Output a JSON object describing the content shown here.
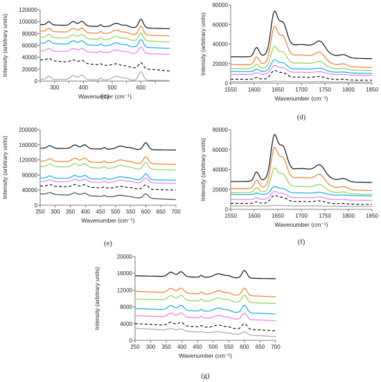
{
  "colors": {
    "black": "#111111",
    "orange": "#ed7d31",
    "green": "#92d050",
    "blue": "#00b0f0",
    "magenta": "#e67ee6",
    "dashed": "#111111",
    "gray": "#a6a6a6",
    "darkslate": "#2f4f5f"
  },
  "chart_data": [
    {
      "id": "c",
      "type": "line",
      "panel_label": "(c)",
      "xlabel": "Wavenumber (cm⁻¹)",
      "ylabel": "Intensity (arbitrary units)",
      "xlim": [
        250,
        700
      ],
      "ylim": [
        0,
        120000
      ],
      "xticks": [
        250,
        300,
        350,
        400,
        450,
        500,
        550,
        600,
        650
      ],
      "xtick_labels": [
        "",
        "300",
        "",
        "400",
        "",
        "500",
        "",
        "600",
        ""
      ],
      "yticks": [
        0,
        20000,
        40000,
        60000,
        80000,
        100000,
        120000
      ],
      "ytick_labels": [
        "0",
        "20000",
        "40000",
        "60000",
        "80000",
        "100000",
        "120000"
      ],
      "peaks": [
        {
          "x": 280,
          "w": 7,
          "h": 0.6
        },
        {
          "x": 365,
          "w": 10,
          "h": 0.75
        },
        {
          "x": 395,
          "w": 9,
          "h": 0.85
        },
        {
          "x": 460,
          "w": 4,
          "h": 0.35
        },
        {
          "x": 515,
          "w": 14,
          "h": 0.7
        },
        {
          "x": 548,
          "w": 10,
          "h": 0.35
        },
        {
          "x": 600,
          "w": 8,
          "h": 1.6
        }
      ],
      "series": [
        {
          "color": "black",
          "style": "solid",
          "base_start": 95000,
          "base_end": 88000,
          "scale": 9000
        },
        {
          "color": "orange",
          "style": "solid",
          "base_start": 84000,
          "base_end": 76000,
          "scale": 9000
        },
        {
          "color": "green",
          "style": "solid",
          "base_start": 74000,
          "base_end": 66000,
          "scale": 8000
        },
        {
          "color": "blue",
          "style": "solid",
          "base_start": 64000,
          "base_end": 55000,
          "scale": 8000
        },
        {
          "color": "magenta",
          "style": "solid",
          "base_start": 51000,
          "base_end": 45000,
          "scale": 7000
        },
        {
          "color": "dashed",
          "style": "dashed",
          "base_start": 36000,
          "base_end": 17000,
          "scale": 6000
        },
        {
          "color": "gray",
          "style": "solid",
          "base_start": 3000,
          "base_end": 1000,
          "scale": 9000
        }
      ]
    },
    {
      "id": "d",
      "type": "line",
      "panel_label": "(d)",
      "xlabel": "Wavenumber (cm⁻¹)",
      "ylabel": "Intensity (arbitrary units)",
      "xlim": [
        1550,
        1850
      ],
      "ylim": [
        0,
        80000
      ],
      "xticks": [
        1550,
        1600,
        1650,
        1700,
        1750,
        1800,
        1850
      ],
      "xtick_labels": [
        "1550",
        "1600",
        "1650",
        "1700",
        "1750",
        "1800",
        "1850"
      ],
      "yticks": [
        0,
        20000,
        40000,
        60000,
        80000
      ],
      "ytick_labels": [
        "0",
        "20000",
        "40000",
        "60000",
        "80000"
      ],
      "peaks": [
        {
          "x": 1605,
          "w": 5,
          "h": 0.2
        },
        {
          "x": 1642,
          "w": 7,
          "h": 0.85
        },
        {
          "x": 1660,
          "w": 9,
          "h": 0.6
        },
        {
          "x": 1700,
          "w": 40,
          "h": 0.3
        },
        {
          "x": 1740,
          "w": 10,
          "h": 0.2
        },
        {
          "x": 1790,
          "w": 8,
          "h": 0.06
        }
      ],
      "series": [
        {
          "color": "black",
          "style": "solid",
          "base_start": 27000,
          "base_end": 25000,
          "scale": 45000
        },
        {
          "color": "orange",
          "style": "solid",
          "base_start": 19000,
          "base_end": 16000,
          "scale": 38000
        },
        {
          "color": "green",
          "style": "solid",
          "base_start": 15000,
          "base_end": 13000,
          "scale": 22000
        },
        {
          "color": "blue",
          "style": "solid",
          "base_start": 12000,
          "base_end": 10000,
          "scale": 12000
        },
        {
          "color": "magenta",
          "style": "solid",
          "base_start": 9000,
          "base_end": 8000,
          "scale": 9000
        },
        {
          "color": "dashed",
          "style": "dashed",
          "base_start": 4000,
          "base_end": 3000,
          "scale": 9000
        },
        {
          "color": "gray",
          "style": "solid",
          "base_start": 1500,
          "base_end": 1200,
          "scale": 600
        }
      ]
    },
    {
      "id": "e",
      "type": "line",
      "panel_label": "(e)",
      "xlabel": "Wavenumber (cm⁻¹)",
      "ylabel": "Intensity (arbitrary units)",
      "xlim": [
        250,
        700
      ],
      "ylim": [
        0,
        200000
      ],
      "xticks": [
        250,
        300,
        350,
        400,
        450,
        500,
        550,
        600,
        650,
        700
      ],
      "xtick_labels": [
        "250",
        "300",
        "350",
        "400",
        "450",
        "500",
        "550",
        "600",
        "650",
        "700"
      ],
      "yticks": [
        0,
        40000,
        80000,
        120000,
        160000,
        200000
      ],
      "ytick_labels": [
        "0",
        "40000",
        "80000",
        "120000",
        "160000",
        "200000"
      ],
      "peaks": [
        {
          "x": 282,
          "w": 8,
          "h": 0.5
        },
        {
          "x": 365,
          "w": 10,
          "h": 0.7
        },
        {
          "x": 397,
          "w": 9,
          "h": 0.75
        },
        {
          "x": 462,
          "w": 4,
          "h": 0.3
        },
        {
          "x": 517,
          "w": 14,
          "h": 0.6
        },
        {
          "x": 548,
          "w": 10,
          "h": 0.3
        },
        {
          "x": 600,
          "w": 8,
          "h": 1.3
        }
      ],
      "series": [
        {
          "color": "black",
          "style": "solid",
          "base_start": 151000,
          "base_end": 146000,
          "scale": 14000
        },
        {
          "color": "orange",
          "style": "solid",
          "base_start": 117000,
          "base_end": 108000,
          "scale": 14000
        },
        {
          "color": "green",
          "style": "solid",
          "base_start": 103000,
          "base_end": 93000,
          "scale": 14000
        },
        {
          "color": "blue",
          "style": "solid",
          "base_start": 72000,
          "base_end": 66000,
          "scale": 12000
        },
        {
          "color": "magenta",
          "style": "solid",
          "base_start": 63000,
          "base_end": 58000,
          "scale": 10000
        },
        {
          "color": "dashed",
          "style": "dashed",
          "base_start": 51000,
          "base_end": 40000,
          "scale": 9000
        },
        {
          "color": "darkslate",
          "style": "solid",
          "base_start": 30000,
          "base_end": 15000,
          "scale": 9000
        }
      ]
    },
    {
      "id": "f",
      "type": "line",
      "panel_label": "(f)",
      "xlabel": "Wavenumber (cm⁻¹)",
      "ylabel": "Intensity (arbitrary units)",
      "xlim": [
        1550,
        1850
      ],
      "ylim": [
        0,
        80000
      ],
      "xticks": [
        1550,
        1600,
        1650,
        1700,
        1750,
        1800,
        1850
      ],
      "xtick_labels": [
        "1550",
        "1600",
        "1650",
        "1700",
        "1750",
        "1800",
        "1850"
      ],
      "yticks": [
        0,
        20000,
        40000,
        60000,
        80000
      ],
      "ytick_labels": [
        "0",
        "20000",
        "40000",
        "60000",
        "80000"
      ],
      "peaks": [
        {
          "x": 1605,
          "w": 5,
          "h": 0.2
        },
        {
          "x": 1642,
          "w": 7,
          "h": 0.85
        },
        {
          "x": 1660,
          "w": 9,
          "h": 0.6
        },
        {
          "x": 1700,
          "w": 40,
          "h": 0.3
        },
        {
          "x": 1740,
          "w": 10,
          "h": 0.2
        },
        {
          "x": 1790,
          "w": 8,
          "h": 0.06
        }
      ],
      "series": [
        {
          "color": "black",
          "style": "solid",
          "base_start": 28000,
          "base_end": 27000,
          "scale": 45000
        },
        {
          "color": "orange",
          "style": "solid",
          "base_start": 21000,
          "base_end": 19000,
          "scale": 40000
        },
        {
          "color": "green",
          "style": "solid",
          "base_start": 17000,
          "base_end": 15000,
          "scale": 24000
        },
        {
          "color": "blue",
          "style": "solid",
          "base_start": 15000,
          "base_end": 13500,
          "scale": 8000
        },
        {
          "color": "magenta",
          "style": "solid",
          "base_start": 10000,
          "base_end": 9000,
          "scale": 8000
        },
        {
          "color": "dashed",
          "style": "dashed",
          "base_start": 6000,
          "base_end": 5000,
          "scale": 8000
        },
        {
          "color": "gray",
          "style": "solid",
          "base_start": 3500,
          "base_end": 3000,
          "scale": 600
        }
      ]
    },
    {
      "id": "g",
      "type": "line",
      "panel_label": "(g)",
      "xlabel": "Wavenumber (cm⁻¹)",
      "ylabel": "Intensity (arbitrary units)",
      "xlim": [
        250,
        700
      ],
      "ylim": [
        0,
        20000
      ],
      "xticks": [
        250,
        300,
        350,
        400,
        450,
        500,
        550,
        600,
        650,
        700
      ],
      "xtick_labels": [
        "250",
        "300",
        "350",
        "400",
        "450",
        "500",
        "550",
        "600",
        "650",
        "700"
      ],
      "yticks": [
        0,
        4000,
        8000,
        12000,
        16000,
        20000
      ],
      "ytick_labels": [
        "0",
        "4000",
        "8000",
        "12000",
        "16000",
        "20000"
      ],
      "peaks": [
        {
          "x": 365,
          "w": 10,
          "h": 0.7
        },
        {
          "x": 397,
          "w": 9,
          "h": 0.8
        },
        {
          "x": 462,
          "w": 4,
          "h": 0.3
        },
        {
          "x": 517,
          "w": 14,
          "h": 0.6
        },
        {
          "x": 548,
          "w": 10,
          "h": 0.3
        },
        {
          "x": 600,
          "w": 8,
          "h": 1.2
        }
      ],
      "series": [
        {
          "color": "black",
          "style": "solid",
          "base_start": 15400,
          "base_end": 14700,
          "scale": 1500
        },
        {
          "color": "orange",
          "style": "solid",
          "base_start": 11700,
          "base_end": 10400,
          "scale": 1500
        },
        {
          "color": "green",
          "style": "solid",
          "base_start": 9900,
          "base_end": 8800,
          "scale": 1500
        },
        {
          "color": "blue",
          "style": "solid",
          "base_start": 7600,
          "base_end": 6300,
          "scale": 1500
        },
        {
          "color": "magenta",
          "style": "solid",
          "base_start": 5900,
          "base_end": 4700,
          "scale": 1300
        },
        {
          "color": "dashed",
          "style": "dashed",
          "base_start": 4000,
          "base_end": 2300,
          "scale": 1100
        },
        {
          "color": "gray",
          "style": "solid",
          "base_start": 2900,
          "base_end": 900,
          "scale": 600
        }
      ]
    }
  ]
}
